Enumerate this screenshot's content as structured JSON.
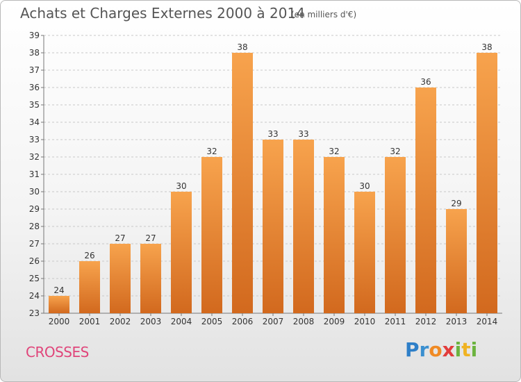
{
  "header": {
    "title": "Achats et Charges Externes 2000 à 2014",
    "subtitle": "(en milliers d'€)"
  },
  "footer": {
    "commune": "CROSSES",
    "logo_text": "Proxiti",
    "logo_letters": [
      {
        "ch": "P",
        "color": "#2e7fc8"
      },
      {
        "ch": "r",
        "color": "#3a8fd0"
      },
      {
        "ch": "o",
        "color": "#f08a24"
      },
      {
        "ch": "x",
        "color": "#e23c3c"
      },
      {
        "ch": "i",
        "color": "#6cb33f"
      },
      {
        "ch": "t",
        "color": "#f0b323"
      },
      {
        "ch": "i",
        "color": "#6cb33f"
      }
    ]
  },
  "chart_data": {
    "type": "bar",
    "categories": [
      "2000",
      "2001",
      "2002",
      "2003",
      "2004",
      "2005",
      "2006",
      "2007",
      "2008",
      "2009",
      "2010",
      "2011",
      "2012",
      "2013",
      "2014"
    ],
    "values": [
      24,
      26,
      27,
      27,
      30,
      32,
      38,
      33,
      33,
      32,
      30,
      32,
      36,
      29,
      38
    ],
    "title": "Achats et Charges Externes 2000 à 2014",
    "unit": "(en milliers d'€)",
    "ylim": [
      23,
      39
    ],
    "yticks": [
      23,
      24,
      25,
      26,
      27,
      28,
      29,
      30,
      31,
      32,
      33,
      34,
      35,
      36,
      37,
      38,
      39
    ],
    "grid": "horizontal dashed",
    "bar_color_top": "#f7a34d",
    "bar_color_bottom": "#d2691e"
  }
}
